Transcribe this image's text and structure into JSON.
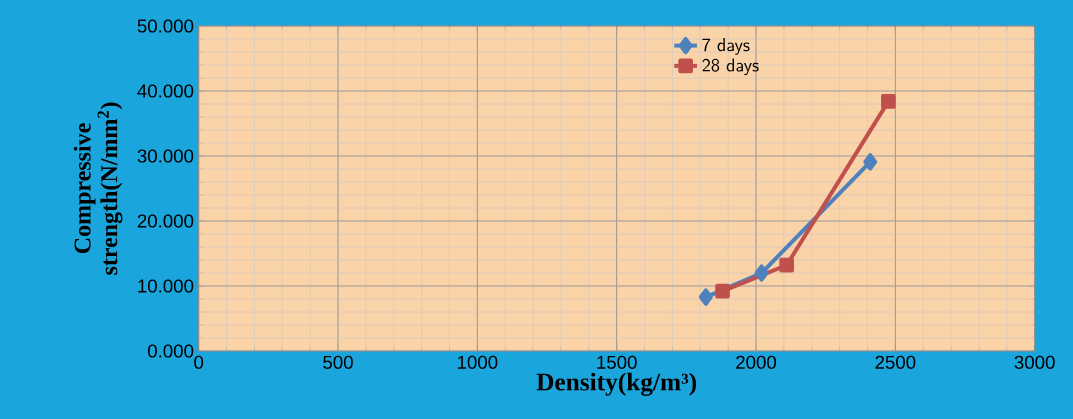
{
  "chart_data": {
    "type": "line",
    "xlabel": "Density(kg/m³)",
    "ylabel": "Compressive strength(N/mm$^{2}$)",
    "xlim": [
      0,
      3000
    ],
    "xticks": [
      0,
      500,
      1000,
      1500,
      2000,
      2500,
      3000
    ],
    "ylim": [
      0,
      50
    ],
    "yticks": [
      {
        "value": 0,
        "label": "0.000"
      },
      {
        "value": 10,
        "label": "10.000"
      },
      {
        "value": 20,
        "label": "20.000"
      },
      {
        "value": 30,
        "label": "30.000"
      },
      {
        "value": 40,
        "label": "40.000"
      },
      {
        "value": 50,
        "label": "50.000"
      }
    ],
    "grid": true,
    "legend": "top",
    "line_style": "solid",
    "series": [
      {
        "name": "7 days",
        "color": "#4f81bd",
        "marker": "diamond",
        "x": [
          1820,
          2020,
          2410
        ],
        "values": [
          8.3,
          12.0,
          29.1
        ]
      },
      {
        "name": "28 days",
        "color": "#c0504d",
        "marker": "square",
        "x": [
          1880,
          2110,
          2475
        ],
        "values": [
          9.2,
          13.2,
          38.4
        ]
      }
    ]
  }
}
